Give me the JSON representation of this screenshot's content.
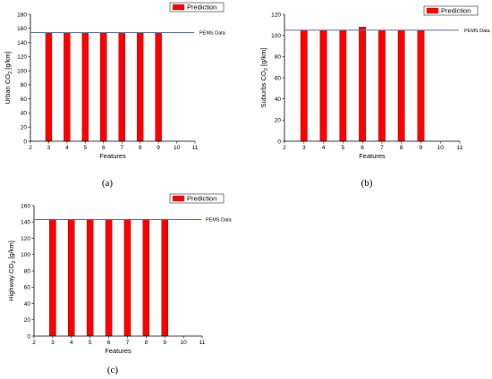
{
  "chart_data": [
    {
      "panel": "(a)",
      "type": "bar",
      "x": [
        3,
        4,
        5,
        6,
        7,
        8,
        9
      ],
      "values": [
        154,
        154,
        154,
        154,
        154,
        154,
        154
      ],
      "xlabel": "Features",
      "ylabel": "Urban CO₂ [g/km]",
      "ylabel_main": "Urban CO",
      "ylabel_sub": "2",
      "ylabel_tail": " [g/km]",
      "xlim": [
        2,
        11
      ],
      "ylim": [
        0,
        180
      ],
      "xticks": [
        2,
        3,
        4,
        5,
        6,
        7,
        8,
        9,
        10,
        11
      ],
      "yticks": [
        0,
        20,
        40,
        60,
        80,
        100,
        120,
        140,
        160,
        180
      ],
      "legend": "Prediction",
      "legend_position": "top-right",
      "reference_line": {
        "label": "PEMS Data",
        "value": 154
      },
      "bar_color": "#ff0000",
      "line_color": "#5b6f9e"
    },
    {
      "panel": "(b)",
      "type": "bar",
      "x": [
        3,
        4,
        5,
        6,
        7,
        8,
        9
      ],
      "values": [
        105,
        105,
        105,
        108,
        105,
        105,
        105
      ],
      "xlabel": "Features",
      "ylabel": "Suburbs CO₂ [g/km]",
      "ylabel_main": "Suburbs CO",
      "ylabel_sub": "2",
      "ylabel_tail": " [g/km]",
      "xlim": [
        2,
        11
      ],
      "ylim": [
        0,
        120
      ],
      "xticks": [
        2,
        3,
        4,
        5,
        6,
        7,
        8,
        9,
        10,
        11
      ],
      "yticks": [
        0,
        20,
        40,
        60,
        80,
        100,
        120
      ],
      "legend": "Prediction",
      "legend_position": "top-right",
      "reference_line": {
        "label": "PEMS Data",
        "value": 105
      },
      "bar_color": "#ff0000",
      "line_color": "#5b6f9e"
    },
    {
      "panel": "(c)",
      "type": "bar",
      "x": [
        3,
        4,
        5,
        6,
        7,
        8,
        9
      ],
      "values": [
        143,
        143,
        143,
        143,
        143,
        143,
        143
      ],
      "xlabel": "Features",
      "ylabel": "Highway CO₂ [g/km]",
      "ylabel_main": "Highway CO",
      "ylabel_sub": "2",
      "ylabel_tail": " [g/km]",
      "xlim": [
        2,
        11
      ],
      "ylim": [
        0,
        160
      ],
      "xticks": [
        2,
        3,
        4,
        5,
        6,
        7,
        8,
        9,
        10,
        11
      ],
      "yticks": [
        0,
        20,
        40,
        60,
        80,
        100,
        120,
        140,
        160
      ],
      "legend": "Prediction",
      "legend_position": "top-right",
      "reference_line": {
        "label": "PEMS Data",
        "value": 143
      },
      "bar_color": "#ff0000",
      "line_color": "#5b6f9e"
    }
  ]
}
